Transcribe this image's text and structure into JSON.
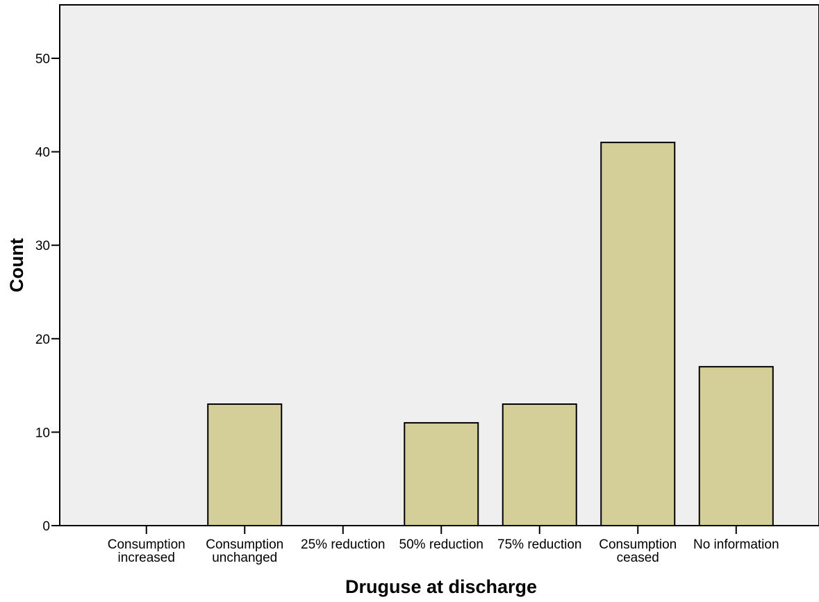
{
  "chart_data": {
    "type": "bar",
    "title": "",
    "xlabel": "Druguse at discharge",
    "ylabel": "Count",
    "categories": [
      [
        "Consumption",
        "increased"
      ],
      [
        "Consumption",
        "unchanged"
      ],
      [
        "25% reduction"
      ],
      [
        "50% reduction"
      ],
      [
        "75% reduction"
      ],
      [
        "Consumption",
        "ceased"
      ],
      [
        "No information"
      ]
    ],
    "values": [
      0,
      13,
      0,
      11,
      13,
      41,
      17
    ],
    "ylim": [
      0,
      55
    ],
    "yticks": [
      0,
      10,
      20,
      30,
      40,
      50
    ],
    "grid": false,
    "legend": "none",
    "colors": {
      "bar_fill": "#d4ce98",
      "bar_stroke": "#000000",
      "plot_bg": "#efefef",
      "axis": "#000000"
    }
  }
}
